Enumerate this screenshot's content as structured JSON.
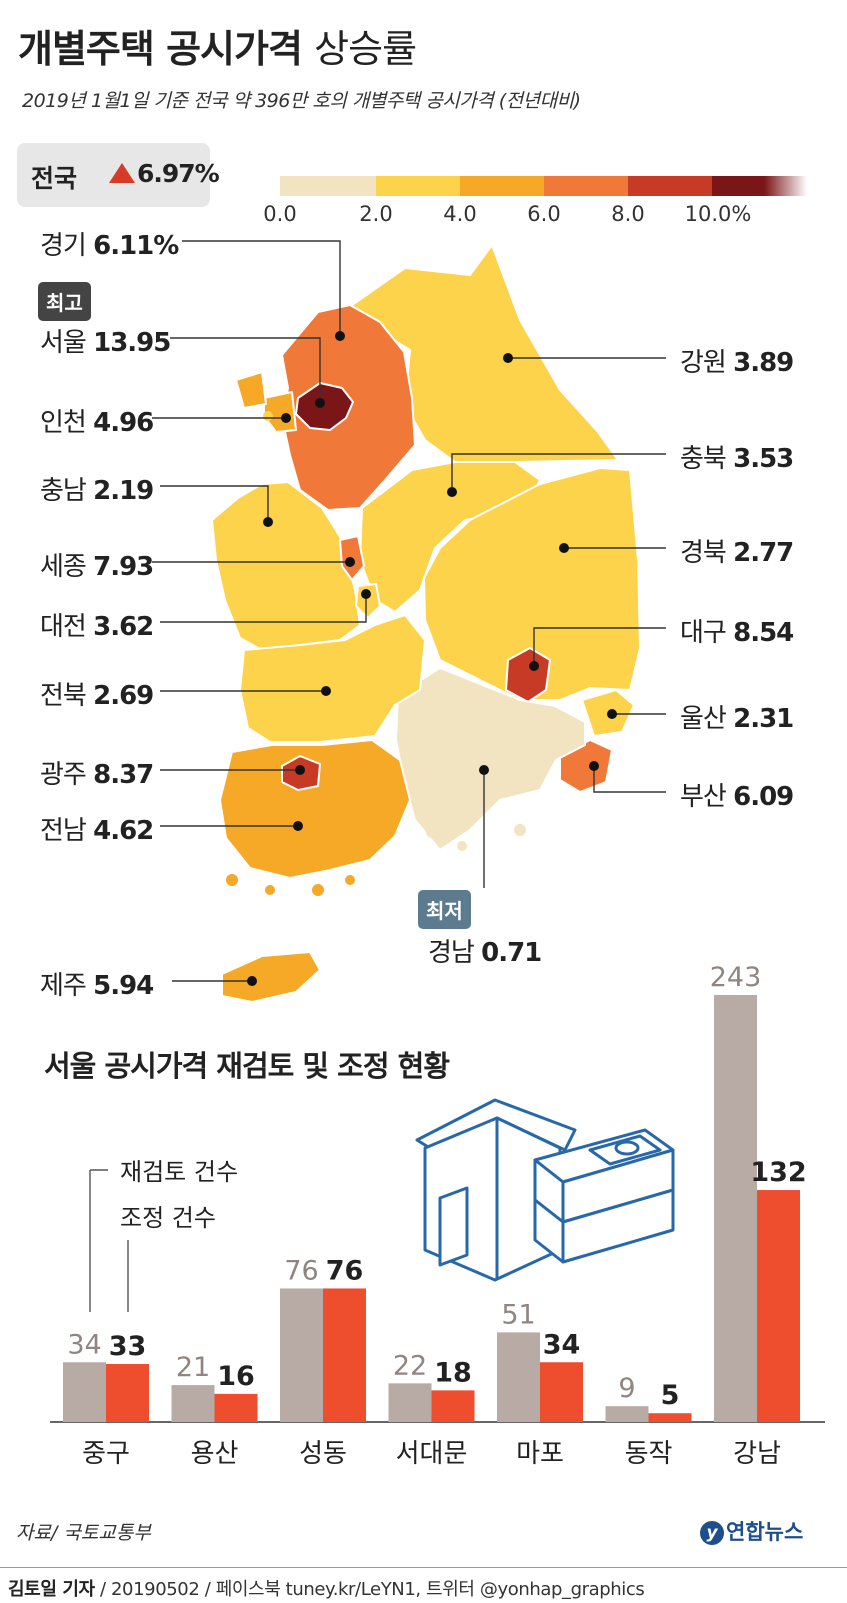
{
  "title_main": "개별주택 공시가격",
  "title_sub": "상승률",
  "subtitle": "2019년 1월1일 기준 전국 약 396만 호의 개별주택 공시가격 (전년대비)",
  "national": {
    "label": "전국",
    "value": "6.97%"
  },
  "legend": {
    "ticks": [
      "0.0",
      "2.0",
      "4.0",
      "6.0",
      "8.0",
      "10.0%"
    ],
    "colors": [
      "#f2e4c0",
      "#fcd34a",
      "#f6a827",
      "#f0793a",
      "#c73a26",
      "#7a1518"
    ]
  },
  "badges": {
    "highest": "최고",
    "lowest": "최저"
  },
  "regions": [
    {
      "name": "경기",
      "value": "6.11%"
    },
    {
      "name": "서울",
      "value": "13.95"
    },
    {
      "name": "인천",
      "value": "4.96"
    },
    {
      "name": "충남",
      "value": "2.19"
    },
    {
      "name": "세종",
      "value": "7.93"
    },
    {
      "name": "대전",
      "value": "3.62"
    },
    {
      "name": "전북",
      "value": "2.69"
    },
    {
      "name": "광주",
      "value": "8.37"
    },
    {
      "name": "전남",
      "value": "4.62"
    },
    {
      "name": "제주",
      "value": "5.94"
    },
    {
      "name": "강원",
      "value": "3.89"
    },
    {
      "name": "충북",
      "value": "3.53"
    },
    {
      "name": "경북",
      "value": "2.77"
    },
    {
      "name": "대구",
      "value": "8.54"
    },
    {
      "name": "울산",
      "value": "2.31"
    },
    {
      "name": "부산",
      "value": "6.09"
    },
    {
      "name": "경남",
      "value": "0.71"
    }
  ],
  "bar_chart_title": "서울 공시가격 재검토 및 조정 현황",
  "chart_data": {
    "type": "bar",
    "title": "서울 공시가격 재검토 및 조정 현황",
    "categories": [
      "중구",
      "용산",
      "성동",
      "서대문",
      "마포",
      "동작",
      "강남"
    ],
    "series": [
      {
        "name": "재검토 건수",
        "values": [
          34,
          21,
          76,
          22,
          51,
          9,
          243
        ],
        "color": "#b8aba6"
      },
      {
        "name": "조정 건수",
        "values": [
          33,
          16,
          76,
          18,
          34,
          5,
          132
        ],
        "color": "#ee4d2e"
      }
    ],
    "ylim": [
      0,
      243
    ],
    "grid": false,
    "legend_position": "top-left"
  },
  "source": "자료/ 국토교통부",
  "logo": "연합뉴스",
  "footer": {
    "author": "김토일 기자",
    "rest": "/ 20190502 / 페이스북 tuney.kr/LeYN1, 트위터 @yonhap_graphics"
  }
}
